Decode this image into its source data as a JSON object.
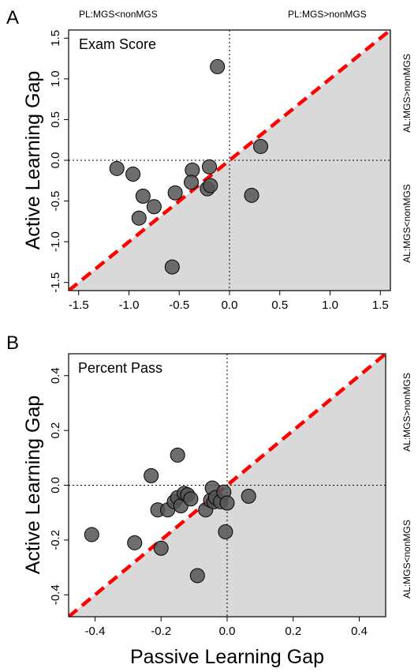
{
  "labels": {
    "pl_less": "PL:MGS<nonMGS",
    "pl_greater": "PL:MGS>nonMGS",
    "al_greater": "AL:MGS>nonMGS",
    "al_less": "AL:MGS<nonMGS"
  },
  "colors": {
    "shade": "#d9d9d9",
    "diagonal": "#ff0000",
    "point_fill": "#555555",
    "point_stroke": "#000000"
  },
  "chart_data": [
    {
      "panel": "A",
      "type": "scatter",
      "title": "Exam Score",
      "xlabel": "",
      "ylabel": "Active Learning Gap",
      "xlim": [
        -1.6,
        1.6
      ],
      "ylim": [
        -1.6,
        1.6
      ],
      "xticks": [
        -1.5,
        -1.0,
        -0.5,
        0.0,
        0.5,
        1.0,
        1.5
      ],
      "xtick_labels": [
        "-1.5",
        "-1.0",
        "-0.5",
        "0.0",
        "0.5",
        "1.0",
        "1.5"
      ],
      "yticks": [
        -1.5,
        -1.0,
        -0.5,
        0.0,
        0.5,
        1.0,
        1.5
      ],
      "ytick_labels": [
        "-1.5",
        "-1.0",
        "-0.5",
        "0.0",
        "0.5",
        "1.0",
        "1.5"
      ],
      "reference_line": "y = x",
      "shaded_region": "below y = x",
      "grid": false,
      "points": [
        {
          "x": -1.12,
          "y": -0.1
        },
        {
          "x": -0.96,
          "y": -0.17
        },
        {
          "x": -0.86,
          "y": -0.44
        },
        {
          "x": -0.9,
          "y": -0.71
        },
        {
          "x": -0.75,
          "y": -0.57
        },
        {
          "x": -0.54,
          "y": -0.4
        },
        {
          "x": -0.57,
          "y": -1.31
        },
        {
          "x": -0.37,
          "y": -0.12
        },
        {
          "x": -0.38,
          "y": -0.27
        },
        {
          "x": -0.22,
          "y": -0.35
        },
        {
          "x": -0.2,
          "y": -0.08
        },
        {
          "x": -0.19,
          "y": -0.31
        },
        {
          "x": -0.12,
          "y": 1.15
        },
        {
          "x": 0.22,
          "y": -0.43
        },
        {
          "x": 0.31,
          "y": 0.17
        }
      ]
    },
    {
      "panel": "B",
      "type": "scatter",
      "title": "Percent Pass",
      "xlabel": "Passive Learning Gap",
      "ylabel": "Active Learning Gap",
      "xlim": [
        -0.48,
        0.48
      ],
      "ylim": [
        -0.48,
        0.48
      ],
      "xticks": [
        -0.4,
        -0.2,
        0.0,
        0.2,
        0.4
      ],
      "xtick_labels": [
        "-0.4",
        "-0.2",
        "0.0",
        "0.2",
        "0.4"
      ],
      "yticks": [
        -0.4,
        -0.2,
        0.0,
        0.2,
        0.4
      ],
      "ytick_labels": [
        "-0.4",
        "-0.2",
        "0.0",
        "0.2",
        "0.4"
      ],
      "reference_line": "y = x",
      "shaded_region": "below y = x",
      "grid": false,
      "points": [
        {
          "x": -0.41,
          "y": -0.18
        },
        {
          "x": -0.28,
          "y": -0.21
        },
        {
          "x": -0.23,
          "y": 0.035
        },
        {
          "x": -0.2,
          "y": -0.23
        },
        {
          "x": -0.21,
          "y": -0.09
        },
        {
          "x": -0.18,
          "y": -0.09
        },
        {
          "x": -0.16,
          "y": -0.06
        },
        {
          "x": -0.15,
          "y": 0.11
        },
        {
          "x": -0.15,
          "y": -0.045
        },
        {
          "x": -0.14,
          "y": -0.075
        },
        {
          "x": -0.13,
          "y": -0.03
        },
        {
          "x": -0.12,
          "y": -0.035
        },
        {
          "x": -0.11,
          "y": -0.05
        },
        {
          "x": -0.09,
          "y": -0.33
        },
        {
          "x": -0.065,
          "y": -0.09
        },
        {
          "x": -0.05,
          "y": -0.055
        },
        {
          "x": -0.045,
          "y": -0.01
        },
        {
          "x": -0.04,
          "y": -0.06
        },
        {
          "x": -0.035,
          "y": -0.045
        },
        {
          "x": -0.02,
          "y": -0.06
        },
        {
          "x": -0.01,
          "y": -0.025
        },
        {
          "x": -0.005,
          "y": -0.17
        },
        {
          "x": 0.0,
          "y": -0.065
        },
        {
          "x": 0.065,
          "y": -0.04
        }
      ]
    }
  ]
}
